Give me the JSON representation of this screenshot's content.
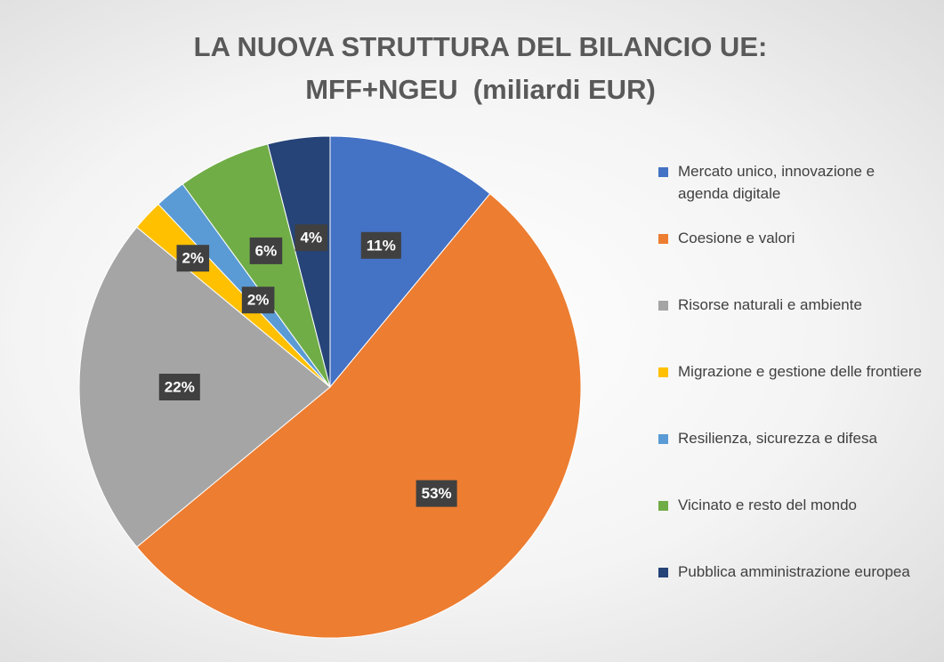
{
  "chart_data": {
    "type": "pie",
    "title": [
      "LA NUOVA STRUTTURA DEL BILANCIO UE:",
      "MFF+NGEU  (miliardi EUR)"
    ],
    "categories": [
      "Mercato unico, innovazione e agenda digitale",
      "Coesione e valori",
      "Risorse naturali e ambiente",
      "Migrazione e gestione delle frontiere",
      "Resilienza, sicurezza e difesa",
      "Vicinato e resto del mondo",
      "Pubblica amministrazione europea"
    ],
    "values": [
      11,
      53,
      22,
      2,
      2,
      6,
      4
    ],
    "value_labels": [
      "11%",
      "53%",
      "22%",
      "2%",
      "2%",
      "6%",
      "4%"
    ],
    "colors": [
      "#4472c4",
      "#ed7d31",
      "#a5a5a5",
      "#ffc000",
      "#5b9bd5",
      "#70ad47",
      "#264478"
    ],
    "legend": "right"
  }
}
